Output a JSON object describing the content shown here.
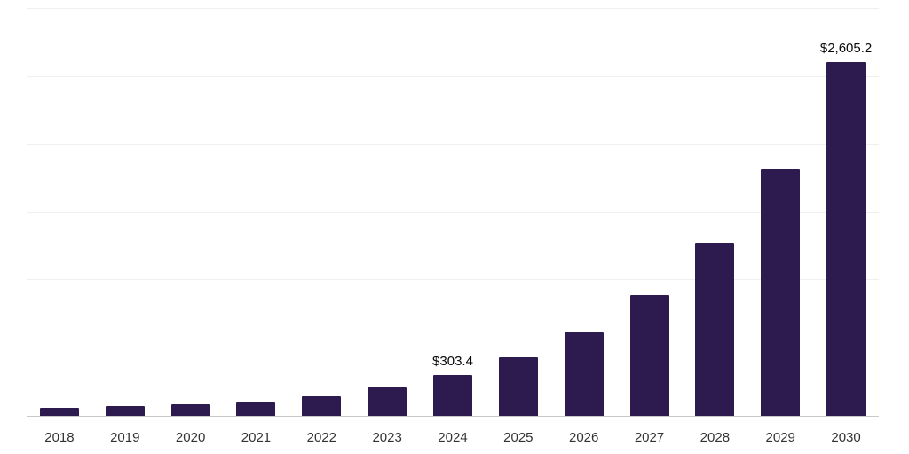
{
  "page": {
    "background_color": "#ffffff"
  },
  "chart_data": {
    "type": "bar",
    "title": "",
    "xlabel": "",
    "ylabel": "",
    "categories": [
      "2018",
      "2019",
      "2020",
      "2021",
      "2022",
      "2023",
      "2024",
      "2025",
      "2026",
      "2027",
      "2028",
      "2029",
      "2030"
    ],
    "values": [
      60,
      75,
      82,
      106,
      145,
      212,
      303.4,
      434,
      621,
      889,
      1272,
      1820,
      2605.2
    ],
    "value_labels": [
      "",
      "",
      "",
      "",
      "",
      "",
      "$303.4",
      "",
      "",
      "",
      "",
      "",
      "$2,605.2"
    ],
    "ylim": [
      0,
      3000
    ],
    "gridline_interval": 500,
    "grid": true,
    "legend": "none",
    "bar_color": "#2d1b4f",
    "gridline_color": "#efefef",
    "axis_line_color": "#c9c9c9",
    "tick_label_color": "#333333",
    "value_label_color": "#0a0a0a"
  }
}
